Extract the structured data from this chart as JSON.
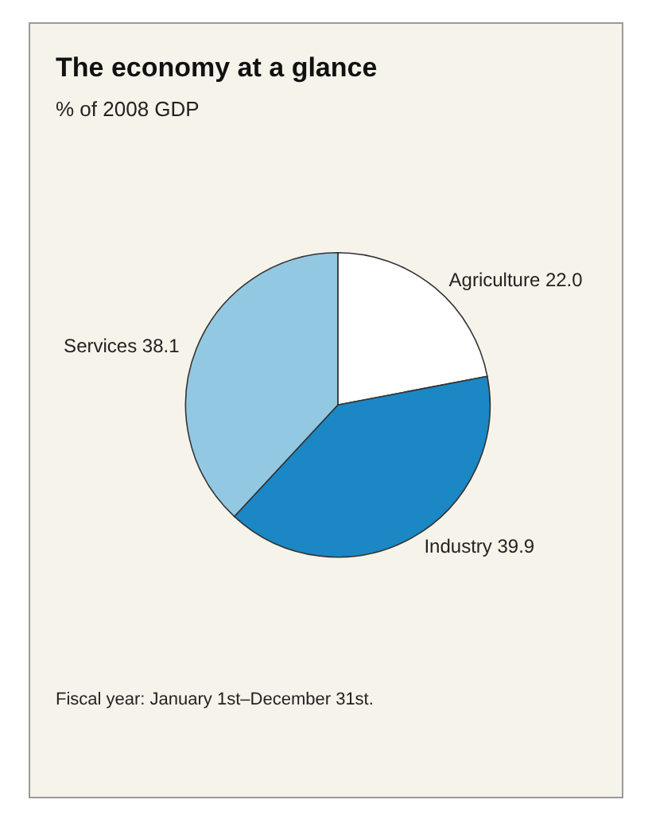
{
  "chart_data": {
    "type": "pie",
    "title": "The economy at a glance",
    "subtitle": "% of 2008 GDP",
    "categories": [
      "Agriculture",
      "Industry",
      "Services"
    ],
    "values": [
      22.0,
      39.9,
      38.1
    ],
    "value_labels": [
      "22.0",
      "39.9",
      "38.1"
    ],
    "colors": [
      "#ffffff",
      "#1b87c5",
      "#93c8e2"
    ],
    "legend": false,
    "annotations": [
      "Fiscal year: January 1st–December 31st."
    ]
  }
}
